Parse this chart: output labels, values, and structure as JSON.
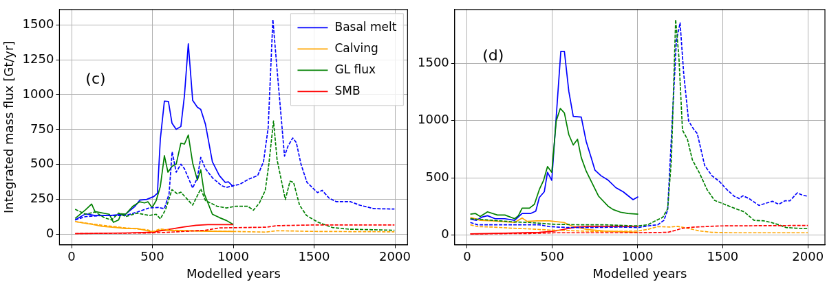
{
  "chart_data": [
    {
      "type": "line",
      "xlabel": "Modelled years",
      "ylabel": "Integrated mass flux [Gt/yr]",
      "annotations": [
        "(c)"
      ],
      "xlim": [
        -75,
        2078
      ],
      "ylim": [
        -75,
        1610
      ],
      "xticks": [
        0,
        500,
        1000,
        1500,
        2000
      ],
      "yticks": [
        0,
        250,
        500,
        750,
        1000,
        1250,
        1500
      ],
      "grid": true,
      "legend": "top right",
      "series": [
        {
          "name": "Basal melt",
          "color": "#0000ff",
          "line_style": "solid",
          "x": [
            22,
            87,
            145,
            233,
            334,
            392,
            422,
            465,
            509,
            531,
            549,
            574,
            599,
            621,
            647,
            676,
            698,
            722,
            749,
            778,
            799,
            828,
            871,
            914,
            950,
            970,
            1000
          ],
          "values": [
            103,
            147,
            135,
            135,
            144,
            200,
            245,
            250,
            271,
            294,
            682,
            954,
            951,
            796,
            752,
            772,
            992,
            1364,
            959,
            910,
            894,
            788,
            519,
            421,
            372,
            376,
            341
          ]
        },
        {
          "name": "Calving",
          "color": "#ffa500",
          "line_style": "solid",
          "x": [
            22,
            131,
            189,
            276,
            334,
            407,
            465,
            501,
            545,
            700,
            850,
            1000
          ],
          "values": [
            91,
            70,
            57,
            49,
            41,
            41,
            26,
            16,
            29,
            25,
            22,
            20
          ]
        },
        {
          "name": "GL flux",
          "color": "#008000",
          "line_style": "solid",
          "x": [
            22,
            87,
            124,
            145,
            233,
            259,
            291,
            305,
            334,
            378,
            422,
            451,
            472,
            498,
            523,
            549,
            574,
            596,
            621,
            647,
            676,
            698,
            722,
            749,
            778,
            799,
            821,
            871,
            914,
            958,
            999
          ],
          "values": [
            114,
            176,
            217,
            163,
            144,
            86,
            103,
            147,
            144,
            200,
            233,
            225,
            233,
            192,
            241,
            343,
            563,
            445,
            486,
            502,
            653,
            646,
            711,
            510,
            388,
            462,
            290,
            144,
            120,
            99,
            71
          ]
        },
        {
          "name": "SMB",
          "color": "#ff0000",
          "line_style": "solid",
          "x": [
            22,
            334,
            509,
            567,
            698,
            770,
            843,
            1000
          ],
          "values": [
            5,
            10,
            16,
            29,
            54,
            65,
            70,
            70
          ]
        },
        {
          "color": "#0000ff",
          "line_style": "dashed",
          "x": [
            22,
            87,
            189,
            334,
            407,
            480,
            538,
            574,
            603,
            622,
            647,
            676,
            698,
            749,
            778,
            799,
            828,
            871,
            929,
            958,
            999,
            1042,
            1093,
            1151,
            1187,
            1216,
            1245,
            1274,
            1317,
            1339,
            1368,
            1390,
            1419,
            1456,
            1521,
            1550,
            1594,
            1637,
            1724,
            1782,
            1869,
            1997
          ],
          "values": [
            103,
            127,
            135,
            135,
            160,
            189,
            192,
            184,
            290,
            592,
            445,
            502,
            470,
            331,
            405,
            551,
            470,
            405,
            348,
            336,
            348,
            359,
            394,
            421,
            519,
            763,
            1538,
            1139,
            560,
            633,
            690,
            657,
            502,
            372,
            299,
            315,
            258,
            234,
            234,
            209,
            184,
            181
          ]
        },
        {
          "color": "#ffa500",
          "line_style": "dashed",
          "x": [
            22,
            189,
            334,
            465,
            509,
            545,
            625,
            985,
            1200,
            1272,
            1490,
            1997
          ],
          "values": [
            91,
            65,
            46,
            33,
            21,
            38,
            29,
            21,
            16,
            26,
            21,
            18
          ]
        },
        {
          "color": "#008000",
          "line_style": "dashed",
          "x": [
            22,
            87,
            145,
            203,
            247,
            291,
            334,
            407,
            480,
            523,
            549,
            581,
            621,
            654,
            676,
            749,
            799,
            828,
            900,
            958,
            1016,
            1089,
            1125,
            1162,
            1198,
            1220,
            1249,
            1271,
            1322,
            1351,
            1373,
            1410,
            1453,
            1526,
            1613,
            1715,
            1860,
            1997
          ],
          "values": [
            179,
            144,
            160,
            119,
            103,
            152,
            127,
            152,
            135,
            144,
            111,
            176,
            320,
            290,
            302,
            209,
            326,
            242,
            201,
            189,
            201,
            201,
            173,
            225,
            315,
            502,
            812,
            535,
            249,
            380,
            372,
            209,
            135,
            86,
            49,
            37,
            33,
            29
          ]
        },
        {
          "color": "#ff0000",
          "line_style": "dashed",
          "x": [
            22,
            480,
            567,
            698,
            828,
            914,
            1200,
            1272,
            1490,
            1997
          ],
          "values": [
            5,
            10,
            13,
            21,
            29,
            46,
            51,
            62,
            67,
            67
          ]
        }
      ]
    },
    {
      "type": "line",
      "xlabel": "Modelled years",
      "annotations": [
        "(d)"
      ],
      "xlim": [
        -73,
        2100
      ],
      "ylim": [
        -85,
        1970
      ],
      "xticks": [
        0,
        500,
        1000,
        1500,
        2000
      ],
      "yticks": [
        0,
        500,
        1000,
        1500
      ],
      "grid": true,
      "series": [
        {
          "color": "#0000ff",
          "line_style": "solid",
          "x": [
            19,
            55,
            91,
            120,
            164,
            222,
            279,
            323,
            374,
            403,
            424,
            453,
            472,
            497,
            550,
            571,
            597,
            623,
            670,
            699,
            728,
            750,
            786,
            829,
            873,
            916,
            974,
            1004
          ],
          "values": [
            139,
            129,
            159,
            169,
            143,
            143,
            129,
            189,
            189,
            209,
            329,
            378,
            548,
            478,
            1604,
            1604,
            1255,
            1036,
            1030,
            817,
            677,
            568,
            518,
            478,
            414,
            378,
            309,
            335
          ]
        },
        {
          "color": "#ffa500",
          "line_style": "solid",
          "x": [
            19,
            77,
            149,
            279,
            323,
            352,
            410,
            482,
            569,
            613,
            699,
            801,
            1004
          ],
          "values": [
            155,
            129,
            124,
            110,
            149,
            120,
            124,
            124,
            110,
            80,
            50,
            36,
            24
          ]
        },
        {
          "color": "#008000",
          "line_style": "solid",
          "x": [
            19,
            48,
            77,
            120,
            178,
            222,
            279,
            301,
            323,
            366,
            395,
            424,
            449,
            472,
            497,
            523,
            547,
            571,
            597,
            623,
            648,
            670,
            699,
            772,
            830,
            857,
            900,
            944,
            1004
          ],
          "values": [
            183,
            189,
            163,
            203,
            175,
            175,
            143,
            169,
            235,
            235,
            269,
            398,
            478,
            598,
            548,
            996,
            1106,
            1066,
            877,
            787,
            837,
            677,
            558,
            339,
            249,
            223,
            200,
            189,
            183
          ]
        },
        {
          "color": "#ff0000",
          "line_style": "solid",
          "x": [
            19,
            222,
            424,
            511,
            569,
            641,
            728,
            1004
          ],
          "values": [
            10,
            16,
            24,
            34,
            50,
            70,
            76,
            76
          ]
        },
        {
          "color": "#0000ff",
          "line_style": "dashed",
          "x": [
            19,
            62,
            135,
            251,
            366,
            424,
            482,
            584,
            728,
            902,
            1004,
            1061,
            1119,
            1155,
            1177,
            1206,
            1228,
            1250,
            1271,
            1300,
            1329,
            1351,
            1394,
            1437,
            1481,
            1524,
            1568,
            1597,
            1618,
            1655,
            1713,
            1756,
            1792,
            1829,
            1865,
            1894,
            1938,
            1967,
            2000
          ],
          "values": [
            110,
            90,
            90,
            90,
            90,
            90,
            74,
            66,
            66,
            70,
            66,
            80,
            90,
            129,
            219,
            1056,
            1693,
            1853,
            1414,
            996,
            926,
            886,
            608,
            518,
            468,
            398,
            339,
            319,
            343,
            319,
            259,
            279,
            295,
            269,
            299,
            299,
            369,
            349,
            339
          ]
        },
        {
          "color": "#ffa500",
          "line_style": "dashed",
          "x": [
            19,
            62,
            149,
            265,
            366,
            482,
            656,
            801,
            1004,
            1061,
            1119,
            1192,
            1235,
            1293,
            1365,
            1437,
            1553,
            2000
          ],
          "values": [
            90,
            74,
            70,
            60,
            54,
            44,
            36,
            30,
            36,
            50,
            74,
            70,
            76,
            60,
            36,
            24,
            20,
            20
          ]
        },
        {
          "color": "#008000",
          "line_style": "dashed",
          "x": [
            19,
            149,
            265,
            366,
            511,
            656,
            801,
            1004,
            1061,
            1104,
            1148,
            1177,
            1199,
            1224,
            1243,
            1264,
            1293,
            1322,
            1365,
            1408,
            1452,
            1510,
            1568,
            1626,
            1684,
            1742,
            1785,
            1829,
            1872,
            1930,
            2000
          ],
          "values": [
            143,
            129,
            116,
            110,
            94,
            90,
            90,
            80,
            90,
            124,
            155,
            229,
            657,
            1882,
            1554,
            916,
            837,
            657,
            538,
            398,
            303,
            269,
            235,
            203,
            129,
            124,
            110,
            90,
            66,
            60,
            56
          ]
        },
        {
          "color": "#ff0000",
          "line_style": "dashed",
          "x": [
            19,
            366,
            511,
            757,
            1004,
            1177,
            1220,
            1264,
            1336,
            1481,
            2000
          ],
          "values": [
            10,
            14,
            20,
            20,
            20,
            24,
            40,
            60,
            70,
            80,
            84
          ]
        }
      ]
    }
  ]
}
